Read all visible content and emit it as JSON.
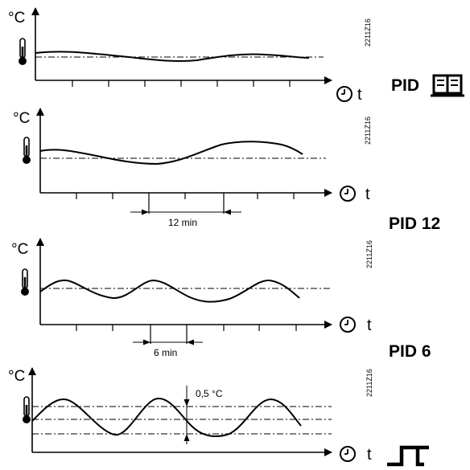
{
  "y_unit": "°C",
  "x_unit": "t",
  "figure_code": "2211Z16",
  "panels": [
    {
      "id": "pid-book",
      "mode_label": "PID",
      "mode_icon": "book-icon",
      "interval_label": ""
    },
    {
      "id": "pid-12",
      "mode_label": "PID 12",
      "mode_icon": "",
      "interval_label": "12 min"
    },
    {
      "id": "pid-6",
      "mode_label": "PID 6",
      "mode_icon": "",
      "interval_label": "6 min"
    },
    {
      "id": "two-position",
      "mode_label": "",
      "mode_icon": "two-position-step-icon",
      "interval_label": "",
      "band_label": "0,5 °C"
    }
  ]
}
